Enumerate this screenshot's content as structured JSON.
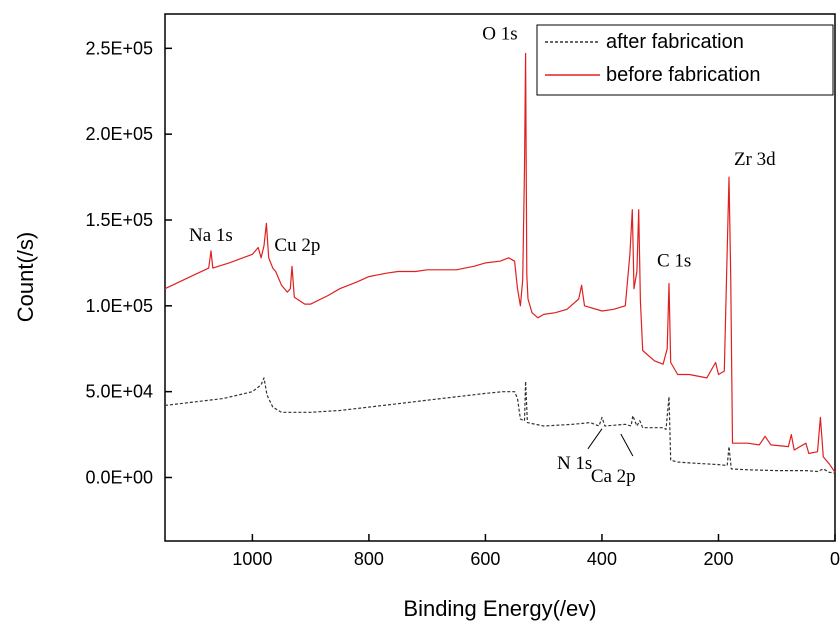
{
  "chart_data": {
    "type": "line",
    "xlabel": "Binding Energy(/ev)",
    "ylabel": "Count(/s)",
    "xlim": [
      1150,
      0
    ],
    "ylim": [
      -37000,
      270000
    ],
    "x_reversed": true,
    "x_ticks": [
      1000,
      800,
      600,
      400,
      200,
      0
    ],
    "x_tick_labels": [
      "1000",
      "800",
      "600",
      "400",
      "200",
      "0"
    ],
    "y_ticks": [
      0,
      50000,
      100000,
      150000,
      200000,
      250000
    ],
    "y_tick_labels": [
      "0.0E+00",
      "5.0E+04",
      "1.0E+05",
      "1.5E+05",
      "2.0E+05",
      "2.5E+05"
    ],
    "legend_position": "top-right",
    "annotations": [
      {
        "text": "O 1s",
        "x": 531,
        "y": 247000
      },
      {
        "text": "Na 1s",
        "x": 1071,
        "y": 132000
      },
      {
        "text": "Cu 2p",
        "x": 933,
        "y": 125000
      },
      {
        "text": "C 1s",
        "x": 285,
        "y": 110000
      },
      {
        "text": "Zr 3d",
        "x": 182,
        "y": 175000
      },
      {
        "text": "N 1s",
        "x": 400,
        "y": 33000
      },
      {
        "text": "Ca 2p",
        "x": 347,
        "y": 30000
      }
    ],
    "series": [
      {
        "name": "after fabrication",
        "color": "#333333",
        "style": "dashed",
        "points": [
          [
            1150,
            42000
          ],
          [
            1100,
            44000
          ],
          [
            1050,
            46000
          ],
          [
            1000,
            50000
          ],
          [
            985,
            54000
          ],
          [
            980,
            58000
          ],
          [
            975,
            48000
          ],
          [
            965,
            41000
          ],
          [
            950,
            38000
          ],
          [
            935,
            38000
          ],
          [
            900,
            38000
          ],
          [
            850,
            39000
          ],
          [
            800,
            41000
          ],
          [
            750,
            43000
          ],
          [
            700,
            45000
          ],
          [
            650,
            47000
          ],
          [
            600,
            49000
          ],
          [
            570,
            50000
          ],
          [
            550,
            50000
          ],
          [
            545,
            46000
          ],
          [
            540,
            34000
          ],
          [
            533,
            33000
          ],
          [
            531,
            56000
          ],
          [
            528,
            32000
          ],
          [
            500,
            30000
          ],
          [
            450,
            31000
          ],
          [
            420,
            32000
          ],
          [
            405,
            30000
          ],
          [
            400,
            35000
          ],
          [
            395,
            30000
          ],
          [
            360,
            31000
          ],
          [
            350,
            30000
          ],
          [
            347,
            36000
          ],
          [
            340,
            30000
          ],
          [
            335,
            33000
          ],
          [
            330,
            29000
          ],
          [
            295,
            29000
          ],
          [
            290,
            28000
          ],
          [
            285,
            47000
          ],
          [
            282,
            10000
          ],
          [
            270,
            9000
          ],
          [
            250,
            8500
          ],
          [
            200,
            7500
          ],
          [
            185,
            7000
          ],
          [
            182,
            18000
          ],
          [
            178,
            5000
          ],
          [
            150,
            4500
          ],
          [
            100,
            4000
          ],
          [
            50,
            4000
          ],
          [
            30,
            3500
          ],
          [
            20,
            5000
          ],
          [
            10,
            3000
          ],
          [
            0,
            2500
          ]
        ]
      },
      {
        "name": "before fabrication",
        "color": "#e02020",
        "style": "solid",
        "points": [
          [
            1150,
            110000
          ],
          [
            1100,
            118000
          ],
          [
            1075,
            122000
          ],
          [
            1071,
            132000
          ],
          [
            1068,
            122000
          ],
          [
            1040,
            125000
          ],
          [
            1000,
            130000
          ],
          [
            990,
            134000
          ],
          [
            985,
            128000
          ],
          [
            980,
            135000
          ],
          [
            976,
            148000
          ],
          [
            972,
            128000
          ],
          [
            965,
            122000
          ],
          [
            960,
            120000
          ],
          [
            950,
            112000
          ],
          [
            940,
            108000
          ],
          [
            935,
            110000
          ],
          [
            932,
            123000
          ],
          [
            928,
            105000
          ],
          [
            910,
            101000
          ],
          [
            900,
            101000
          ],
          [
            870,
            106000
          ],
          [
            850,
            110000
          ],
          [
            820,
            114000
          ],
          [
            800,
            117000
          ],
          [
            770,
            119000
          ],
          [
            750,
            120000
          ],
          [
            720,
            120000
          ],
          [
            700,
            121000
          ],
          [
            670,
            121000
          ],
          [
            650,
            121000
          ],
          [
            620,
            123000
          ],
          [
            600,
            125000
          ],
          [
            575,
            126000
          ],
          [
            560,
            128000
          ],
          [
            550,
            126000
          ],
          [
            545,
            110000
          ],
          [
            540,
            100000
          ],
          [
            536,
            115000
          ],
          [
            533,
            180000
          ],
          [
            531,
            247000
          ],
          [
            529,
            118000
          ],
          [
            527,
            104000
          ],
          [
            520,
            96000
          ],
          [
            510,
            93000
          ],
          [
            500,
            95000
          ],
          [
            480,
            96000
          ],
          [
            460,
            98000
          ],
          [
            440,
            104000
          ],
          [
            435,
            112000
          ],
          [
            430,
            100000
          ],
          [
            400,
            97000
          ],
          [
            380,
            98000
          ],
          [
            360,
            100000
          ],
          [
            352,
            130000
          ],
          [
            348,
            156000
          ],
          [
            345,
            110000
          ],
          [
            340,
            120000
          ],
          [
            337,
            156000
          ],
          [
            334,
            103000
          ],
          [
            330,
            74000
          ],
          [
            310,
            68000
          ],
          [
            295,
            66000
          ],
          [
            288,
            75000
          ],
          [
            285,
            113000
          ],
          [
            282,
            67000
          ],
          [
            270,
            60000
          ],
          [
            250,
            60000
          ],
          [
            220,
            58000
          ],
          [
            205,
            67000
          ],
          [
            200,
            60000
          ],
          [
            190,
            62000
          ],
          [
            186,
            118000
          ],
          [
            182,
            175000
          ],
          [
            179,
            118000
          ],
          [
            176,
            20000
          ],
          [
            150,
            20000
          ],
          [
            130,
            19000
          ],
          [
            120,
            24000
          ],
          [
            110,
            19000
          ],
          [
            80,
            18000
          ],
          [
            75,
            25000
          ],
          [
            70,
            16000
          ],
          [
            50,
            20000
          ],
          [
            45,
            14000
          ],
          [
            30,
            15000
          ],
          [
            25,
            35000
          ],
          [
            20,
            12000
          ],
          [
            10,
            8000
          ],
          [
            0,
            3000
          ]
        ]
      }
    ]
  }
}
